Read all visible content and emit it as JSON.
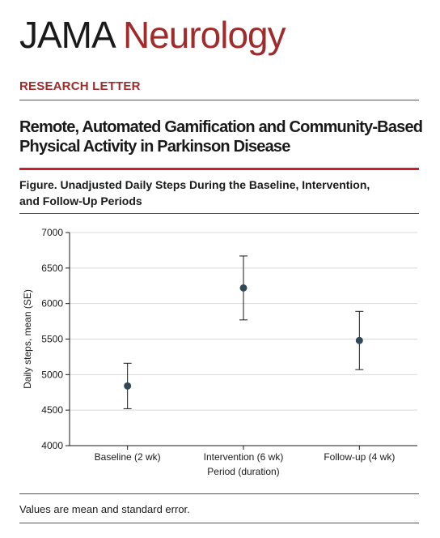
{
  "journal": {
    "name_part1": "JAMA",
    "name_part2": "Neurology"
  },
  "article": {
    "section": "RESEARCH LETTER",
    "title_line1": "Remote, Automated Gamification and Community-Based",
    "title_line2": "Physical Activity in Parkinson Disease"
  },
  "figure": {
    "caption_line1": "Figure. Unadjusted Daily Steps During the Baseline, Intervention,",
    "caption_line2": "and Follow-Up Periods",
    "note": "Values are mean and standard error."
  },
  "chart_data": {
    "type": "scatter",
    "xlabel": "Period (duration)",
    "ylabel": "Daily steps, mean (SE)",
    "categories": [
      "Baseline (2 wk)",
      "Intervention (6 wk)",
      "Follow-up (4 wk)"
    ],
    "values": [
      4840,
      6220,
      5480
    ],
    "error_low": [
      4520,
      5770,
      5070
    ],
    "error_high": [
      5160,
      6670,
      5890
    ],
    "ylim": [
      4000,
      7000
    ],
    "yticks": [
      4000,
      4500,
      5000,
      5500,
      6000,
      6500,
      7000
    ],
    "grid": true,
    "point_color": "#2f4a56"
  }
}
